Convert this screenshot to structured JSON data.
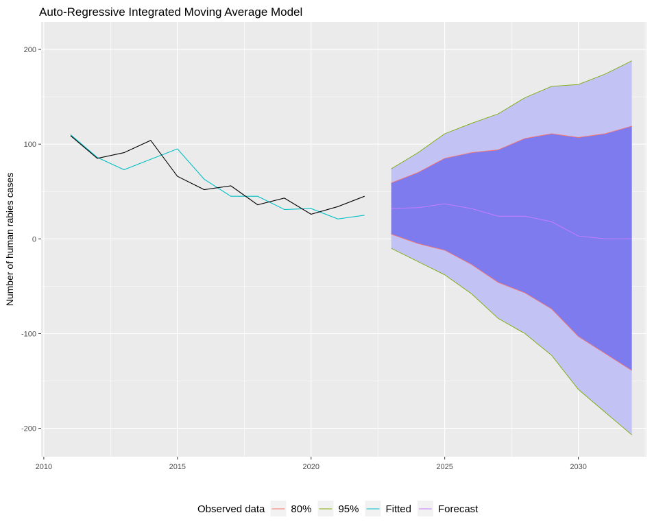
{
  "chart_data": {
    "type": "line",
    "title": "Auto-Regressive Integrated Moving Average Model",
    "xlabel": "",
    "ylabel": "Number of human rabies cases",
    "xlim": [
      2009.9,
      2032.55
    ],
    "ylim": [
      -230,
      229
    ],
    "x_ticks": [
      2010,
      2015,
      2020,
      2025,
      2030
    ],
    "x_tick_labels": [
      "2010",
      "2015",
      "2020",
      "2025",
      "2030"
    ],
    "y_ticks": [
      -200,
      -100,
      0,
      100,
      200
    ],
    "y_tick_labels": [
      "-200",
      "-100",
      "0",
      "100",
      "200"
    ],
    "grid": true,
    "legend": {
      "position": "bottom",
      "entries": [
        {
          "label": "Observed data",
          "color": ""
        },
        {
          "label": "80%",
          "color": "#F8766D"
        },
        {
          "label": "95%",
          "color": "#7CAE00"
        },
        {
          "label": "Fitted",
          "color": "#00BFC4"
        },
        {
          "label": "Forecast",
          "color": "#C77CFF"
        }
      ]
    },
    "observed": {
      "x": [
        2011,
        2012,
        2013,
        2014,
        2015,
        2016,
        2017,
        2018,
        2019,
        2020,
        2021,
        2022
      ],
      "y": [
        109,
        85,
        91,
        104,
        66,
        52,
        56,
        36,
        43,
        26,
        34,
        45
      ],
      "color": "#000000"
    },
    "fitted": {
      "x": [
        2011,
        2012,
        2013,
        2014,
        2015,
        2016,
        2017,
        2018,
        2019,
        2020,
        2021,
        2022
      ],
      "y": [
        110,
        86,
        73,
        84,
        95,
        63,
        45,
        45,
        31,
        32,
        21,
        25
      ],
      "color": "#00BFC4"
    },
    "forecast": {
      "x": [
        2023,
        2024,
        2025,
        2026,
        2027,
        2028,
        2029,
        2030,
        2031,
        2032
      ],
      "mean": [
        32,
        33,
        37,
        32,
        24,
        24,
        18,
        3,
        0,
        0
      ],
      "lo80": [
        5,
        -5,
        -12,
        -27,
        -46,
        -57,
        -74,
        -103,
        -121,
        -139
      ],
      "hi80": [
        59,
        70,
        85,
        91,
        94,
        106,
        111,
        107,
        111,
        119
      ],
      "lo95": [
        -10,
        -24,
        -38,
        -58,
        -84,
        -100,
        -123,
        -159,
        -183,
        -207
      ],
      "hi95": [
        74,
        91,
        111,
        122,
        132,
        149,
        161,
        163,
        174,
        188
      ],
      "color": "#C77CFF",
      "band80_color": "#F8766D",
      "band95_color": "#7CAE00",
      "band80_fill": "#7e7bef",
      "band95_fill": "#c3c2f5"
    }
  }
}
